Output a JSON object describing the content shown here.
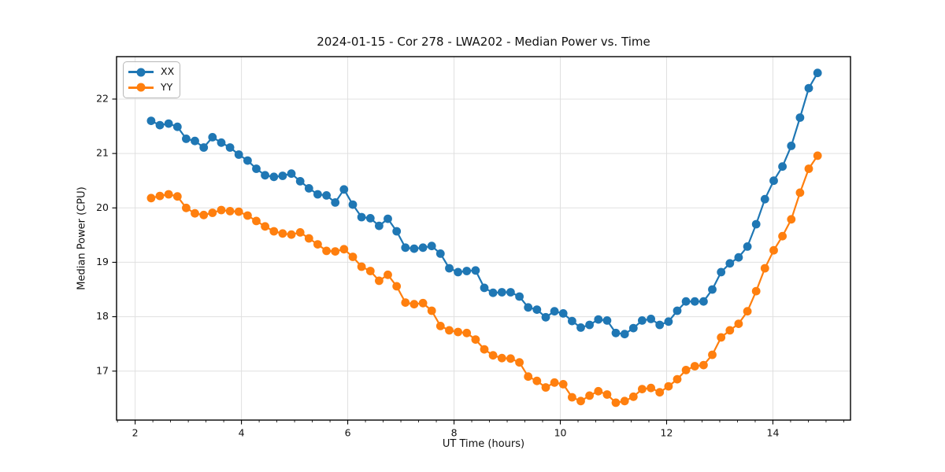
{
  "chart_data": {
    "type": "line",
    "title": "2024-01-15 - Cor 278 - LWA202 - Median Power vs. Time",
    "xlabel": "UT Time (hours)",
    "ylabel": "Median Power (CPU)",
    "xlim": [
      1.65,
      15.46
    ],
    "ylim": [
      16.1,
      22.78
    ],
    "x_ticks": [
      2,
      4,
      6,
      8,
      10,
      12,
      14
    ],
    "y_ticks": [
      17,
      18,
      19,
      20,
      21,
      22
    ],
    "x_minor_tick_step": 0.33333,
    "grid": true,
    "grid_color": "#e0e0e0",
    "axis_color": "#000000",
    "text_color": "#111111",
    "legend_position": "upper left",
    "x": [
      2.3,
      2.465,
      2.63,
      2.795,
      2.96,
      3.125,
      3.29,
      3.455,
      3.62,
      3.785,
      3.95,
      4.115,
      4.28,
      4.445,
      4.61,
      4.775,
      4.94,
      5.105,
      5.27,
      5.435,
      5.6,
      5.765,
      5.93,
      6.095,
      6.26,
      6.425,
      6.59,
      6.755,
      6.92,
      7.085,
      7.25,
      7.415,
      7.58,
      7.745,
      7.91,
      8.075,
      8.24,
      8.405,
      8.57,
      8.735,
      8.9,
      9.065,
      9.23,
      9.395,
      9.56,
      9.725,
      9.89,
      10.055,
      10.22,
      10.385,
      10.55,
      10.715,
      10.88,
      11.045,
      11.21,
      11.375,
      11.54,
      11.705,
      11.87,
      12.035,
      12.2,
      12.365,
      12.53,
      12.695,
      12.86,
      13.025,
      13.19,
      13.355,
      13.52,
      13.685,
      13.85,
      14.015,
      14.18,
      14.345,
      14.51,
      14.675,
      14.84
    ],
    "series": [
      {
        "name": "XX",
        "color": "#1f77b4",
        "marker": "circle",
        "values": [
          21.6,
          21.52,
          21.55,
          21.49,
          21.27,
          21.23,
          21.11,
          21.3,
          21.2,
          21.11,
          20.98,
          20.87,
          20.72,
          20.6,
          20.57,
          20.59,
          20.63,
          20.49,
          20.36,
          20.25,
          20.23,
          20.1,
          20.34,
          20.06,
          19.83,
          19.81,
          19.67,
          19.8,
          19.57,
          19.27,
          19.25,
          19.27,
          19.3,
          19.16,
          18.89,
          18.82,
          18.84,
          18.85,
          18.53,
          18.44,
          18.45,
          18.45,
          18.37,
          18.17,
          18.13,
          17.99,
          18.1,
          18.06,
          17.92,
          17.8,
          17.85,
          17.95,
          17.93,
          17.7,
          17.68,
          17.79,
          17.93,
          17.96,
          17.85,
          17.91,
          18.11,
          18.28,
          18.28,
          18.28,
          18.5,
          18.82,
          18.98,
          19.09,
          19.29,
          19.7,
          20.16,
          20.5,
          20.76,
          21.14,
          21.66,
          22.2,
          22.48
        ]
      },
      {
        "name": "YY",
        "color": "#ff7f0e",
        "marker": "circle",
        "values": [
          20.18,
          20.22,
          20.25,
          20.21,
          20.0,
          19.9,
          19.87,
          19.91,
          19.96,
          19.94,
          19.93,
          19.86,
          19.76,
          19.66,
          19.57,
          19.53,
          19.51,
          19.55,
          19.44,
          19.33,
          19.21,
          19.2,
          19.24,
          19.1,
          18.92,
          18.84,
          18.66,
          18.77,
          18.56,
          18.26,
          18.23,
          18.25,
          18.11,
          17.83,
          17.75,
          17.72,
          17.7,
          17.58,
          17.4,
          17.29,
          17.24,
          17.23,
          17.16,
          16.9,
          16.82,
          16.7,
          16.79,
          16.76,
          16.52,
          16.45,
          16.55,
          16.63,
          16.57,
          16.42,
          16.45,
          16.53,
          16.67,
          16.69,
          16.61,
          16.72,
          16.85,
          17.02,
          17.09,
          17.11,
          17.3,
          17.62,
          17.75,
          17.87,
          18.1,
          18.47,
          18.89,
          19.22,
          19.48,
          19.79,
          20.28,
          20.72,
          20.96
        ]
      }
    ]
  }
}
